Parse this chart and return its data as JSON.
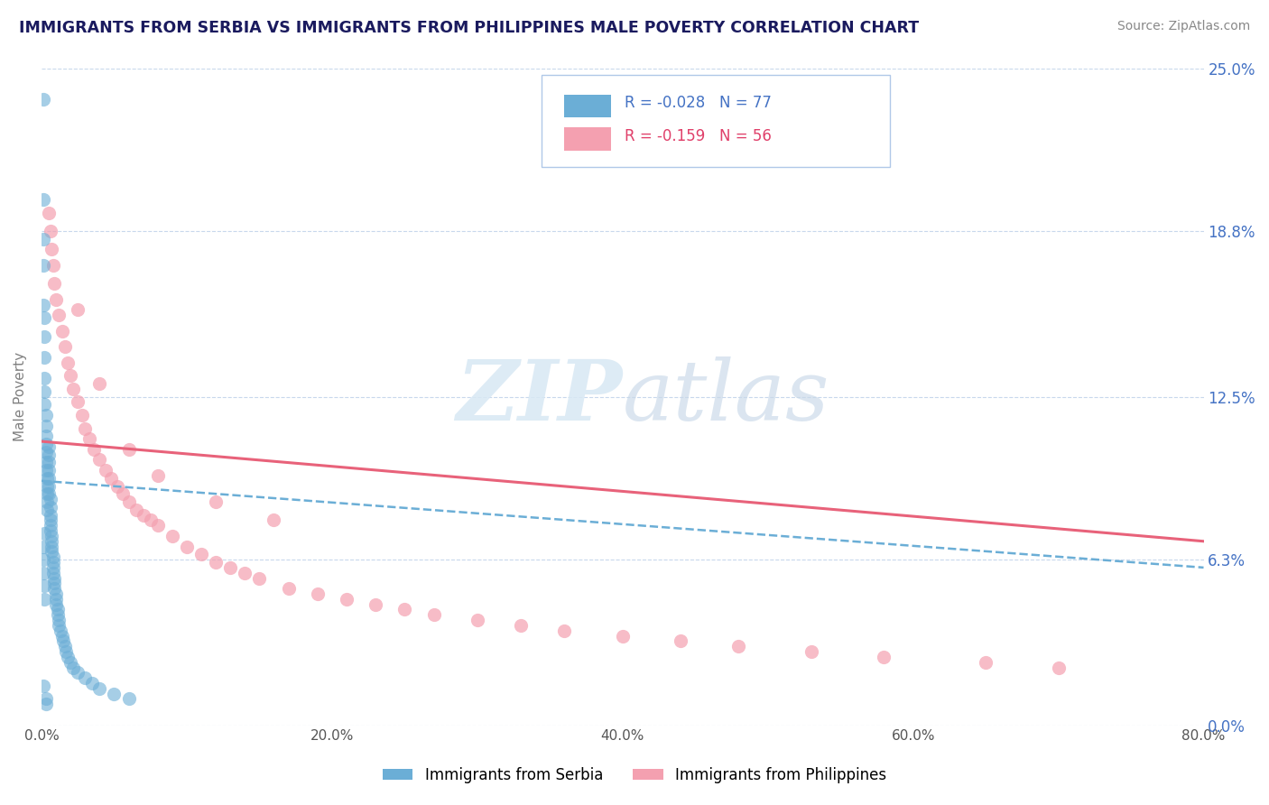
{
  "title": "IMMIGRANTS FROM SERBIA VS IMMIGRANTS FROM PHILIPPINES MALE POVERTY CORRELATION CHART",
  "source": "Source: ZipAtlas.com",
  "ylabel": "Male Poverty",
  "xlim": [
    0.0,
    0.8
  ],
  "ylim": [
    0.0,
    0.25
  ],
  "ytick_labels": [
    "0.0%",
    "6.3%",
    "12.5%",
    "18.8%",
    "25.0%"
  ],
  "ytick_values": [
    0.0,
    0.063,
    0.125,
    0.188,
    0.25
  ],
  "xtick_labels": [
    "0.0%",
    "20.0%",
    "40.0%",
    "60.0%",
    "80.0%"
  ],
  "xtick_values": [
    0.0,
    0.2,
    0.4,
    0.6,
    0.8
  ],
  "serbia_color": "#6baed6",
  "philippines_color": "#f4a0b0",
  "serbia_R": -0.028,
  "serbia_N": 77,
  "philippines_R": -0.159,
  "philippines_N": 56,
  "serbia_label": "Immigrants from Serbia",
  "philippines_label": "Immigrants from Philippines",
  "serbia_scatter_x": [
    0.001,
    0.001,
    0.001,
    0.001,
    0.001,
    0.002,
    0.002,
    0.002,
    0.002,
    0.002,
    0.002,
    0.003,
    0.003,
    0.003,
    0.003,
    0.003,
    0.003,
    0.003,
    0.004,
    0.004,
    0.004,
    0.004,
    0.004,
    0.005,
    0.005,
    0.005,
    0.005,
    0.005,
    0.005,
    0.005,
    0.006,
    0.006,
    0.006,
    0.006,
    0.006,
    0.006,
    0.007,
    0.007,
    0.007,
    0.007,
    0.008,
    0.008,
    0.008,
    0.008,
    0.009,
    0.009,
    0.009,
    0.01,
    0.01,
    0.01,
    0.011,
    0.011,
    0.012,
    0.012,
    0.013,
    0.014,
    0.015,
    0.016,
    0.017,
    0.018,
    0.02,
    0.022,
    0.025,
    0.03,
    0.035,
    0.04,
    0.05,
    0.06,
    0.002,
    0.001,
    0.001,
    0.001,
    0.002,
    0.002,
    0.001,
    0.003,
    0.003
  ],
  "serbia_scatter_y": [
    0.238,
    0.2,
    0.185,
    0.175,
    0.16,
    0.155,
    0.148,
    0.14,
    0.132,
    0.127,
    0.122,
    0.118,
    0.114,
    0.11,
    0.107,
    0.104,
    0.1,
    0.097,
    0.094,
    0.091,
    0.088,
    0.085,
    0.082,
    0.106,
    0.103,
    0.1,
    0.097,
    0.094,
    0.091,
    0.088,
    0.086,
    0.083,
    0.08,
    0.078,
    0.076,
    0.074,
    0.072,
    0.07,
    0.068,
    0.066,
    0.064,
    0.062,
    0.06,
    0.058,
    0.056,
    0.054,
    0.052,
    0.05,
    0.048,
    0.046,
    0.044,
    0.042,
    0.04,
    0.038,
    0.036,
    0.034,
    0.032,
    0.03,
    0.028,
    0.026,
    0.024,
    0.022,
    0.02,
    0.018,
    0.016,
    0.014,
    0.012,
    0.01,
    0.073,
    0.068,
    0.063,
    0.058,
    0.053,
    0.048,
    0.015,
    0.01,
    0.008
  ],
  "philippines_scatter_x": [
    0.005,
    0.006,
    0.007,
    0.008,
    0.009,
    0.01,
    0.012,
    0.014,
    0.016,
    0.018,
    0.02,
    0.022,
    0.025,
    0.028,
    0.03,
    0.033,
    0.036,
    0.04,
    0.044,
    0.048,
    0.052,
    0.056,
    0.06,
    0.065,
    0.07,
    0.075,
    0.08,
    0.09,
    0.1,
    0.11,
    0.12,
    0.13,
    0.14,
    0.15,
    0.17,
    0.19,
    0.21,
    0.23,
    0.25,
    0.27,
    0.3,
    0.33,
    0.36,
    0.4,
    0.44,
    0.48,
    0.53,
    0.58,
    0.65,
    0.7,
    0.025,
    0.04,
    0.06,
    0.08,
    0.12,
    0.16
  ],
  "philippines_scatter_y": [
    0.195,
    0.188,
    0.181,
    0.175,
    0.168,
    0.162,
    0.156,
    0.15,
    0.144,
    0.138,
    0.133,
    0.128,
    0.123,
    0.118,
    0.113,
    0.109,
    0.105,
    0.101,
    0.097,
    0.094,
    0.091,
    0.088,
    0.085,
    0.082,
    0.08,
    0.078,
    0.076,
    0.072,
    0.068,
    0.065,
    0.062,
    0.06,
    0.058,
    0.056,
    0.052,
    0.05,
    0.048,
    0.046,
    0.044,
    0.042,
    0.04,
    0.038,
    0.036,
    0.034,
    0.032,
    0.03,
    0.028,
    0.026,
    0.024,
    0.022,
    0.158,
    0.13,
    0.105,
    0.095,
    0.085,
    0.078
  ],
  "serbia_trend_x": [
    0.0,
    0.8
  ],
  "serbia_trend_y": [
    0.093,
    0.06
  ],
  "philippines_trend_x": [
    0.0,
    0.8
  ],
  "philippines_trend_y": [
    0.108,
    0.07
  ]
}
